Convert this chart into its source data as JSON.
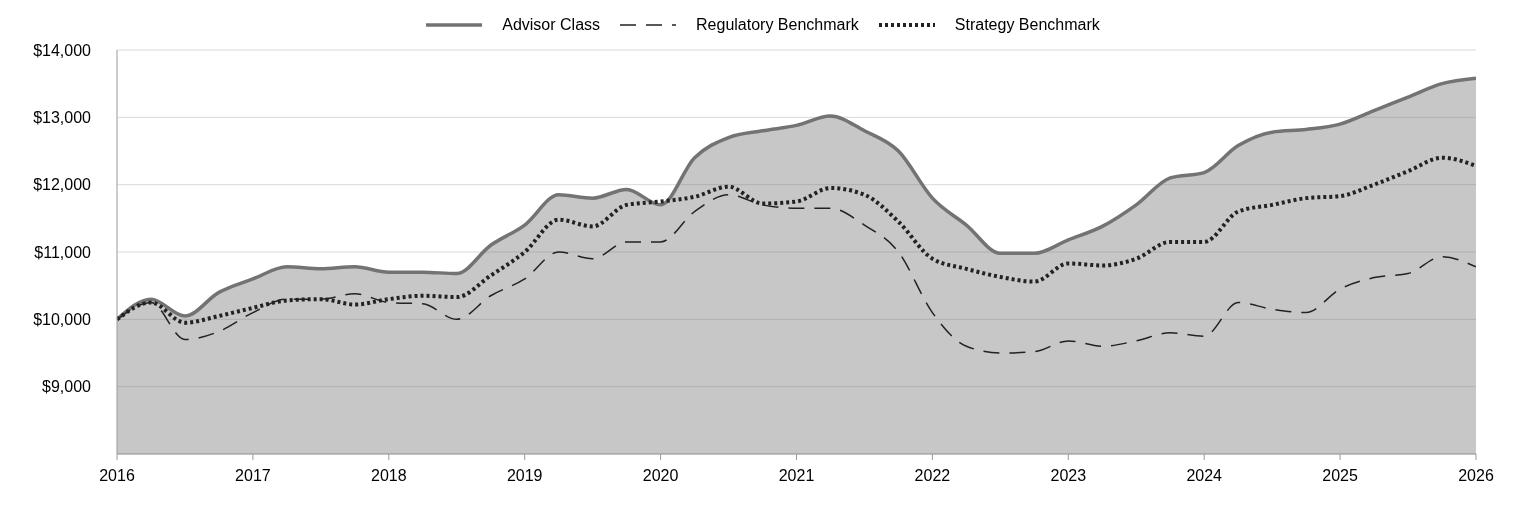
{
  "chart_data": {
    "type": "line",
    "x": [
      2016,
      2016.25,
      2016.5,
      2016.75,
      2017,
      2017.25,
      2017.5,
      2017.75,
      2018,
      2018.25,
      2018.5,
      2018.75,
      2019,
      2019.25,
      2019.5,
      2019.75,
      2020,
      2020.25,
      2020.5,
      2020.75,
      2021,
      2021.25,
      2021.5,
      2021.75,
      2022,
      2022.25,
      2022.5,
      2022.75,
      2023,
      2023.25,
      2023.5,
      2023.75,
      2024,
      2024.25,
      2024.5,
      2024.75,
      2025,
      2025.25,
      2025.5,
      2025.75,
      2026
    ],
    "series": [
      {
        "name": "Advisor Class",
        "type": "area",
        "color": "#737373",
        "line_style": "solid",
        "values": [
          10000,
          10300,
          10050,
          10400,
          10600,
          10780,
          10750,
          10780,
          10700,
          10700,
          10680,
          11100,
          11400,
          11850,
          11800,
          11930,
          11700,
          12400,
          12700,
          12800,
          12880,
          13020,
          12800,
          12500,
          11800,
          11400,
          10980,
          10980,
          11180,
          11380,
          11700,
          12100,
          12180,
          12580,
          12780,
          12820,
          12900,
          13100,
          13300,
          13500,
          13580
        ]
      },
      {
        "name": "Regulatory Benchmark",
        "type": "line",
        "color": "#222222",
        "line_style": "dashed",
        "values": [
          10000,
          10250,
          9700,
          9820,
          10100,
          10300,
          10300,
          10380,
          10250,
          10230,
          10000,
          10350,
          10600,
          11000,
          10900,
          11150,
          11150,
          11600,
          11850,
          11700,
          11650,
          11650,
          11400,
          11000,
          10100,
          9600,
          9500,
          9520,
          9680,
          9600,
          9680,
          9800,
          9750,
          10250,
          10150,
          10100,
          10450,
          10620,
          10680,
          10930,
          10780
        ]
      },
      {
        "name": "Strategy Benchmark",
        "type": "line",
        "color": "#222222",
        "line_style": "dotted",
        "values": [
          10000,
          10250,
          9950,
          10050,
          10170,
          10280,
          10300,
          10220,
          10300,
          10350,
          10330,
          10650,
          11000,
          11480,
          11380,
          11700,
          11750,
          11820,
          11970,
          11720,
          11750,
          11950,
          11850,
          11450,
          10900,
          10750,
          10630,
          10560,
          10830,
          10800,
          10900,
          11150,
          11150,
          11600,
          11700,
          11800,
          11830,
          12000,
          12200,
          12400,
          12280
        ]
      }
    ],
    "xlim": [
      2016,
      2026
    ],
    "xticks": [
      2016,
      2017,
      2018,
      2019,
      2020,
      2021,
      2022,
      2023,
      2024,
      2025,
      2026
    ],
    "ylim": [
      8000,
      14000
    ],
    "yticks": [
      {
        "value": 9000,
        "label": "$9,000"
      },
      {
        "value": 10000,
        "label": "$10,000"
      },
      {
        "value": 11000,
        "label": "$11,000"
      },
      {
        "value": 12000,
        "label": "$12,000"
      },
      {
        "value": 13000,
        "label": "$13,000"
      },
      {
        "value": 14000,
        "label": "$14,000"
      }
    ],
    "grid": "y",
    "legend": "top",
    "marker": "none"
  }
}
